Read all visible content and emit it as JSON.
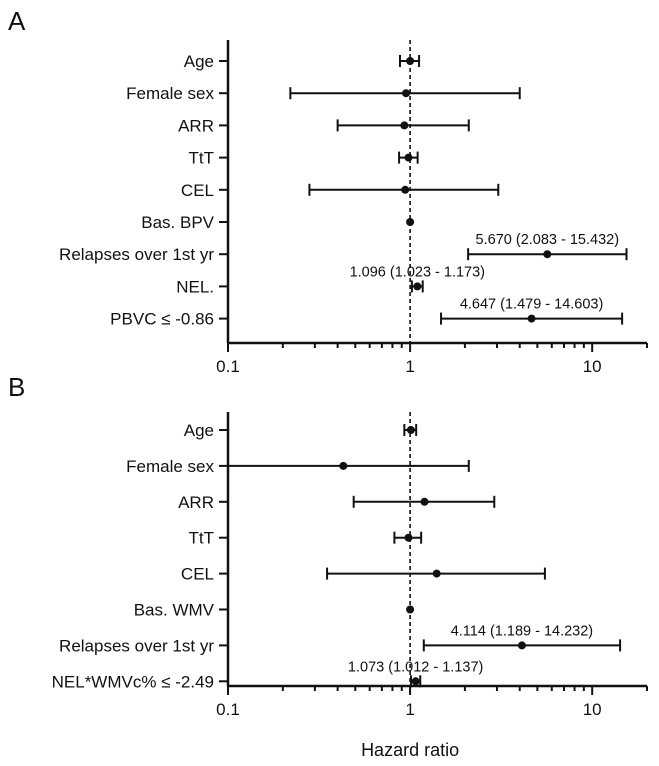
{
  "chart_data": [
    {
      "type": "forest",
      "panel_label": "A",
      "xscale": "log",
      "xlim": [
        0.1,
        20
      ],
      "xticks": [
        0.1,
        1,
        10
      ],
      "xtick_labels": [
        "0.1",
        "1",
        "10"
      ],
      "reference_line": 1,
      "categories": [
        "Age",
        "Female sex",
        "ARR",
        "TtT",
        "CEL",
        "Bas. BPV",
        "Relapses over 1st yr",
        "NEL.",
        "PBVC ≤ -0.86"
      ],
      "estimates": [
        1.0,
        0.95,
        0.93,
        0.98,
        0.94,
        1.0,
        5.67,
        1.096,
        4.647
      ],
      "lower": [
        0.88,
        0.22,
        0.4,
        0.87,
        0.28,
        1.0,
        2.083,
        1.023,
        1.479
      ],
      "upper": [
        1.12,
        4.0,
        2.1,
        1.1,
        3.05,
        1.0,
        15.432,
        1.173,
        14.603
      ],
      "annotations": [
        "",
        "",
        "",
        "",
        "",
        "",
        "5.670 (2.083 - 15.432)",
        "1.096 (1.023 - 1.173)",
        "4.647 (1.479 - 14.603)"
      ]
    },
    {
      "type": "forest",
      "panel_label": "B",
      "xscale": "log",
      "xlim": [
        0.1,
        20
      ],
      "xticks": [
        0.1,
        1,
        10
      ],
      "xtick_labels": [
        "0.1",
        "1",
        "10"
      ],
      "reference_line": 1,
      "xlabel": "Hazard ratio",
      "categories": [
        "Age",
        "Female sex",
        "ARR",
        "TtT",
        "CEL",
        "Bas. WMV",
        "Relapses over 1st yr",
        "NEL*WMVc% ≤ -2.49"
      ],
      "estimates": [
        1.01,
        0.43,
        1.2,
        0.98,
        1.4,
        1.0,
        4.114,
        1.073
      ],
      "lower": [
        0.93,
        0.1,
        0.49,
        0.82,
        0.35,
        1.0,
        1.189,
        1.012
      ],
      "upper": [
        1.08,
        2.1,
        2.9,
        1.15,
        5.5,
        1.0,
        14.232,
        1.137
      ],
      "annotations": [
        "",
        "",
        "",
        "",
        "",
        "",
        "4.114 (1.189 - 14.232)",
        "1.073 (1.012 - 1.137)"
      ]
    }
  ]
}
